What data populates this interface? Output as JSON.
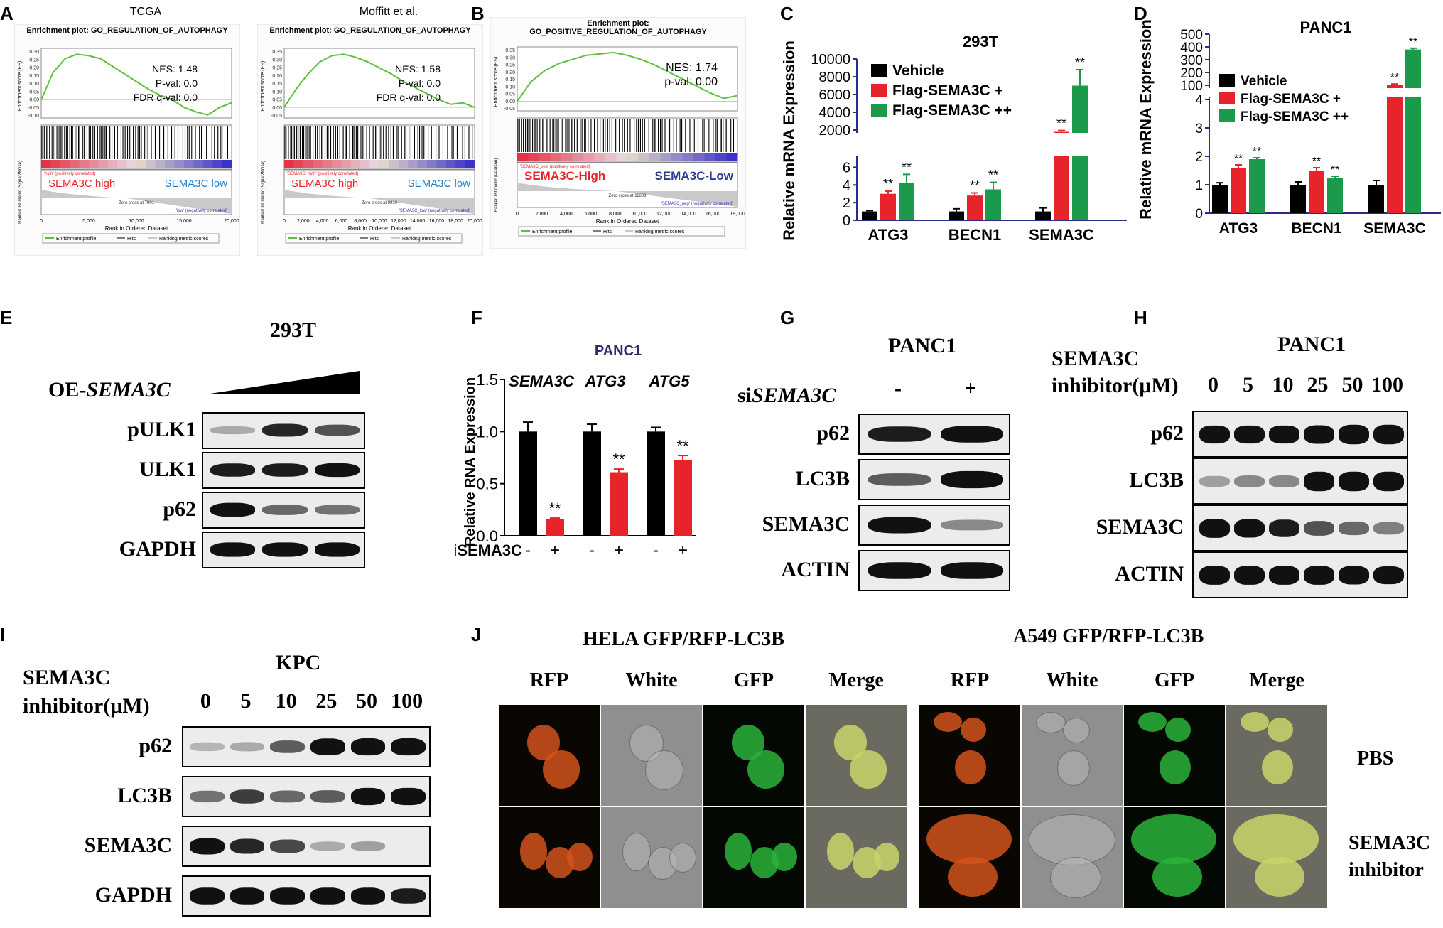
{
  "panels": {
    "A": "A",
    "B": "B",
    "C": "C",
    "D": "D",
    "E": "E",
    "F": "F",
    "G": "G",
    "H": "H",
    "I": "I",
    "J": "J"
  },
  "gsea": [
    {
      "heading": "TCGA",
      "title": "Enrichment plot: GO_REGULATION_OF_AUTOPHAGY",
      "nes": "NES: 1.48",
      "pval": "P-val: 0.0",
      "fdr": "FDR q-val: 0.0",
      "ylabel": "Enrichment score (ES)",
      "yticks": [
        "0.30",
        "0.25",
        "0.20",
        "0.15",
        "0.10",
        "0.05",
        "0.00",
        "-0.05",
        "-0.10"
      ],
      "high_label": "SEMA3C high",
      "low_label": "SEMA3C low",
      "pos_note": "'high' (positively correlated)",
      "neg_note": "'low' (negatively correlated)",
      "zero_cross": "Zero cross at 7901",
      "lower_ylabel": "Ranked list metric (Signal2Noise)",
      "xticks": [
        "0",
        "5,000",
        "10,000",
        "15,000",
        "20,000"
      ],
      "xlabel": "Rank in Ordered Dataset",
      "legend": [
        "Enrichment profile",
        "Hits",
        "Ranking metric scores"
      ],
      "curve": [
        0,
        0.18,
        0.27,
        0.3,
        0.29,
        0.27,
        0.22,
        0.17,
        0.12,
        0.07,
        0.03,
        0.0,
        -0.05,
        -0.08,
        -0.1,
        -0.05,
        -0.02
      ],
      "ymin": -0.12,
      "ymax": 0.32
    },
    {
      "heading": "Moffitt et al.",
      "title": "Enrichment plot: GO_REGULATION_OF_AUTOPHAGY",
      "nes": "NES: 1.58",
      "pval": "P-val: 0.0",
      "fdr": "FDR q-val: 0.0",
      "ylabel": "Enrichment score (ES)",
      "yticks": [
        "0.35",
        "0.30",
        "0.25",
        "0.20",
        "0.15",
        "0.10",
        "0.05",
        "0.00",
        "-0.05"
      ],
      "high_label": "SEMA3C high",
      "low_label": "SEMA3C low",
      "pos_note": "'SEMA3C_high' (positively correlated)",
      "neg_note": "'SEMA3C_low' (negatively correlated)",
      "zero_cross": "Zero cross at 9810",
      "lower_ylabel": "Ranked list metric (Signal2Noise)",
      "xticks": [
        "0",
        "2,000",
        "4,000",
        "6,000",
        "8,000",
        "10,000",
        "12,000",
        "14,000",
        "16,000",
        "18,000",
        "20,000"
      ],
      "xlabel": "Rank in Ordered Dataset",
      "legend": [
        "Enrichment profile",
        "Hits",
        "Ranking metric scores"
      ],
      "curve": [
        0,
        0.12,
        0.22,
        0.3,
        0.34,
        0.35,
        0.33,
        0.3,
        0.26,
        0.22,
        0.17,
        0.13,
        0.09,
        0.05,
        0.02,
        0.03,
        0.0
      ],
      "ymin": -0.07,
      "ymax": 0.37
    },
    {
      "heading": "",
      "title": "Enrichment plot:\nGO_POSITIVE_REGULATION_OF_AUTOPHAGY",
      "nes": "NES: 1.74",
      "pval": "p-val: 0.00",
      "fdr": "",
      "ylabel": "Enrichment score (ES)",
      "yticks": [
        "0.35",
        "0.30",
        "0.25",
        "0.20",
        "0.15",
        "0.10",
        "0.05",
        "0.00",
        "-0.05"
      ],
      "high_label": "SEMA3C-High",
      "low_label": "SEMA3C-Low",
      "pos_note": "'SEMA3C_pos' (positively correlated)",
      "neg_note": "'SEMA3C_neg' (negatively correlated)",
      "zero_cross": "Zero cross at 11683",
      "lower_ylabel": "Ranked list metric (Pearson)",
      "xticks": [
        "0",
        "2,000",
        "4,000",
        "6,000",
        "8,000",
        "10,000",
        "12,000",
        "14,000",
        "16,000",
        "18,000"
      ],
      "xlabel": "Rank in Ordered Dataset",
      "legend": [
        "Enrichment profile",
        "Hits",
        "Ranking metric scores"
      ],
      "curve": [
        0,
        0.14,
        0.22,
        0.27,
        0.3,
        0.33,
        0.34,
        0.35,
        0.33,
        0.3,
        0.26,
        0.21,
        0.16,
        0.11,
        0.06,
        0.02,
        0.04
      ],
      "ymin": -0.07,
      "ymax": 0.37
    }
  ],
  "chart_data": [
    {
      "type": "bar",
      "panel": "C",
      "title": "293T",
      "ylabel": "Relative mRNA Expression",
      "categories": [
        "ATG3",
        "BECN1",
        "SEMA3C"
      ],
      "series": [
        {
          "name": "Vehicle",
          "color": "#000000",
          "values": [
            1,
            1,
            1
          ],
          "errors": [
            0.1,
            0.3,
            0.4
          ]
        },
        {
          "name": "Flag-SEMA3C +",
          "color": "#e8242b",
          "values": [
            3,
            2.8,
            1800
          ],
          "errors": [
            0.3,
            0.3,
            150
          ]
        },
        {
          "name": "Flag-SEMA3C ++",
          "color": "#1a9a4a",
          "values": [
            4.2,
            3.5,
            7000
          ],
          "errors": [
            1.0,
            0.8,
            1800
          ]
        }
      ],
      "sig": "**",
      "lower_ticks": [
        "0",
        "2",
        "4",
        "6"
      ],
      "upper_ticks": [
        "2000",
        "4000",
        "6000",
        "8000",
        "10000"
      ]
    },
    {
      "type": "bar",
      "panel": "D",
      "title": "PANC1",
      "ylabel": "Relative mRNA Expression",
      "categories": [
        "ATG3",
        "BECN1",
        "SEMA3C"
      ],
      "series": [
        {
          "name": "Vehicle",
          "color": "#000000",
          "values": [
            1,
            1,
            1
          ],
          "errors": [
            0.07,
            0.1,
            0.15
          ]
        },
        {
          "name": "Flag-SEMA3C +",
          "color": "#e8242b",
          "values": [
            1.6,
            1.5,
            100
          ],
          "errors": [
            0.1,
            0.1,
            10
          ]
        },
        {
          "name": "Flag-SEMA3C ++",
          "color": "#1a9a4a",
          "values": [
            1.9,
            1.25,
            380
          ],
          "errors": [
            0.05,
            0.05,
            10
          ]
        }
      ],
      "sig": "**",
      "lower_ticks": [
        "0",
        "1",
        "2",
        "3",
        "4"
      ],
      "upper_ticks": [
        "100",
        "200",
        "300",
        "400",
        "500"
      ]
    },
    {
      "type": "bar",
      "panel": "F",
      "title": "PANC1",
      "ylabel": "Relative RNA Expression",
      "ylim": [
        0,
        1.5
      ],
      "yticks": [
        "0.0",
        "0.5",
        "1.0",
        "1.5"
      ],
      "groups": [
        "SEMA3C",
        "ATG3",
        "ATG5"
      ],
      "categories": [
        "-",
        "+",
        "-",
        "+",
        "-",
        "+"
      ],
      "values": [
        1.0,
        0.16,
        1.0,
        0.61,
        1.0,
        0.73
      ],
      "errors": [
        0.09,
        0.01,
        0.07,
        0.03,
        0.04,
        0.04
      ],
      "colors": [
        "#000000",
        "#e8242b",
        "#000000",
        "#e8242b",
        "#000000",
        "#e8242b"
      ],
      "sig": "**",
      "xlabel": "siSEMA3C"
    }
  ],
  "blot_E": {
    "title": "293T",
    "treatment": "OE-",
    "treatment_gene": "SEMA3C",
    "rows": [
      {
        "label": "pULK1",
        "intensity": [
          0.15,
          0.75,
          0.55
        ]
      },
      {
        "label": "ULK1",
        "intensity": [
          0.8,
          0.8,
          0.85
        ]
      },
      {
        "label": "p62",
        "intensity": [
          0.9,
          0.45,
          0.4
        ]
      },
      {
        "label": "GAPDH",
        "intensity": [
          0.95,
          0.95,
          0.95
        ]
      }
    ]
  },
  "blot_G": {
    "title": "PANC1",
    "treatment_prefix": "si",
    "treatment_gene": "SEMA3C",
    "lanes": [
      "-",
      "+"
    ],
    "rows": [
      {
        "label": "p62",
        "intensity": [
          0.8,
          0.95
        ]
      },
      {
        "label": "LC3B",
        "intensity": [
          0.5,
          1.0
        ]
      },
      {
        "label": "SEMA3C",
        "intensity": [
          0.9,
          0.3
        ]
      },
      {
        "label": "ACTIN",
        "intensity": [
          0.95,
          0.95
        ]
      }
    ]
  },
  "blot_H": {
    "title": "PANC1",
    "treatment_line1": "SEMA3C",
    "treatment_line2": "inhibitor(μM)",
    "lanes": [
      "0",
      "5",
      "10",
      "25",
      "50",
      "100"
    ],
    "rows": [
      {
        "label": "p62",
        "intensity": [
          0.85,
          0.85,
          0.85,
          0.9,
          1.0,
          1.0
        ]
      },
      {
        "label": "LC3B",
        "intensity": [
          0.2,
          0.3,
          0.3,
          1.0,
          1.0,
          1.0
        ]
      },
      {
        "label": "SEMA3C",
        "intensity": [
          0.95,
          0.9,
          0.8,
          0.55,
          0.45,
          0.35
        ]
      },
      {
        "label": "ACTIN",
        "intensity": [
          0.95,
          0.95,
          0.95,
          0.95,
          0.9,
          0.85
        ]
      }
    ]
  },
  "blot_I": {
    "title": "KPC",
    "treatment_line1": "SEMA3C",
    "treatment_line2": "inhibitor(μM)",
    "lanes": [
      "0",
      "5",
      "10",
      "25",
      "50",
      "100"
    ],
    "rows": [
      {
        "label": "p62",
        "intensity": [
          0.1,
          0.15,
          0.5,
          0.95,
          1.0,
          1.0
        ]
      },
      {
        "label": "LC3B",
        "intensity": [
          0.4,
          0.65,
          0.45,
          0.5,
          1.0,
          1.0
        ]
      },
      {
        "label": "SEMA3C",
        "intensity": [
          0.9,
          0.75,
          0.6,
          0.15,
          0.2,
          0.0
        ]
      },
      {
        "label": "GAPDH",
        "intensity": [
          0.95,
          0.95,
          0.95,
          0.95,
          0.95,
          0.8
        ]
      }
    ]
  },
  "panel_J": {
    "hela_title": "HELA GFP/RFP-LC3B",
    "a549_title": "A549 GFP/RFP-LC3B",
    "channels": [
      "RFP",
      "White",
      "GFP",
      "Merge"
    ],
    "row_labels": [
      "PBS",
      "SEMA3C\ninhibitor"
    ]
  }
}
